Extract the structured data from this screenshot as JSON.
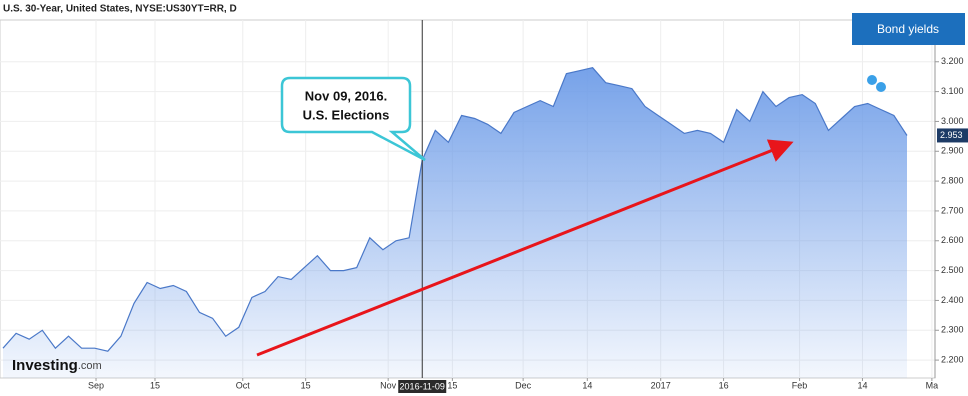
{
  "title": "U.S. 30-Year, United States, NYSE:US30YT=RR, D",
  "button": "Bond yields",
  "logo": [
    "Investing",
    ".com"
  ],
  "callout": [
    "Nov 09, 2016.",
    "U.S. Elections"
  ],
  "chart_data": {
    "type": "area",
    "color": "#6f9de8",
    "values": [
      2.24,
      2.29,
      2.27,
      2.3,
      2.24,
      2.28,
      2.24,
      2.24,
      2.23,
      2.28,
      2.39,
      2.46,
      2.44,
      2.45,
      2.43,
      2.36,
      2.34,
      2.28,
      2.31,
      2.41,
      2.43,
      2.48,
      2.47,
      2.51,
      2.55,
      2.5,
      2.5,
      2.51,
      2.61,
      2.57,
      2.6,
      2.61,
      2.87,
      2.97,
      2.93,
      3.02,
      3.01,
      2.99,
      2.96,
      3.03,
      3.05,
      3.07,
      3.05,
      3.16,
      3.17,
      3.18,
      3.13,
      3.12,
      3.11,
      3.05,
      3.02,
      2.99,
      2.96,
      2.97,
      2.96,
      2.93,
      3.04,
      3.0,
      3.1,
      3.05,
      3.08,
      3.09,
      3.06,
      2.97,
      3.01,
      3.05,
      3.06,
      3.04,
      3.02,
      2.953
    ],
    "xlim": [
      0,
      71.2
    ],
    "xticks": [
      {
        "value": 7.1,
        "label": "Sep"
      },
      {
        "value": 11.6,
        "label": "15"
      },
      {
        "value": 18.3,
        "label": "Oct"
      },
      {
        "value": 23.1,
        "label": "15"
      },
      {
        "value": 29.4,
        "label": "Nov"
      },
      {
        "value": 34.3,
        "label": "15"
      },
      {
        "value": 39.7,
        "label": "Dec"
      },
      {
        "value": 44.6,
        "label": "14"
      },
      {
        "value": 50.2,
        "label": "2017"
      },
      {
        "value": 55.0,
        "label": "16"
      },
      {
        "value": 60.8,
        "label": "Feb"
      },
      {
        "value": 65.6,
        "label": "14"
      },
      {
        "value": 70.9,
        "label": "Ma"
      }
    ],
    "highlight": {
      "value": 32,
      "label": "2016-11-09"
    },
    "ylim": [
      2.14,
      3.34
    ],
    "yticks": [
      {
        "value": 2.2,
        "label": "2.200"
      },
      {
        "value": 2.3,
        "label": "2.300"
      },
      {
        "value": 2.4,
        "label": "2.400"
      },
      {
        "value": 2.5,
        "label": "2.500"
      },
      {
        "value": 2.6,
        "label": "2.600"
      },
      {
        "value": 2.7,
        "label": "2.700"
      },
      {
        "value": 2.8,
        "label": "2.800"
      },
      {
        "value": 2.9,
        "label": "2.900"
      },
      {
        "value": 3.0,
        "label": "3.000"
      },
      {
        "value": 3.1,
        "label": "3.100"
      },
      {
        "value": 3.2,
        "label": "3.200"
      }
    ],
    "last_price": {
      "value": 2.953,
      "label": "2.953"
    },
    "grid": true
  }
}
